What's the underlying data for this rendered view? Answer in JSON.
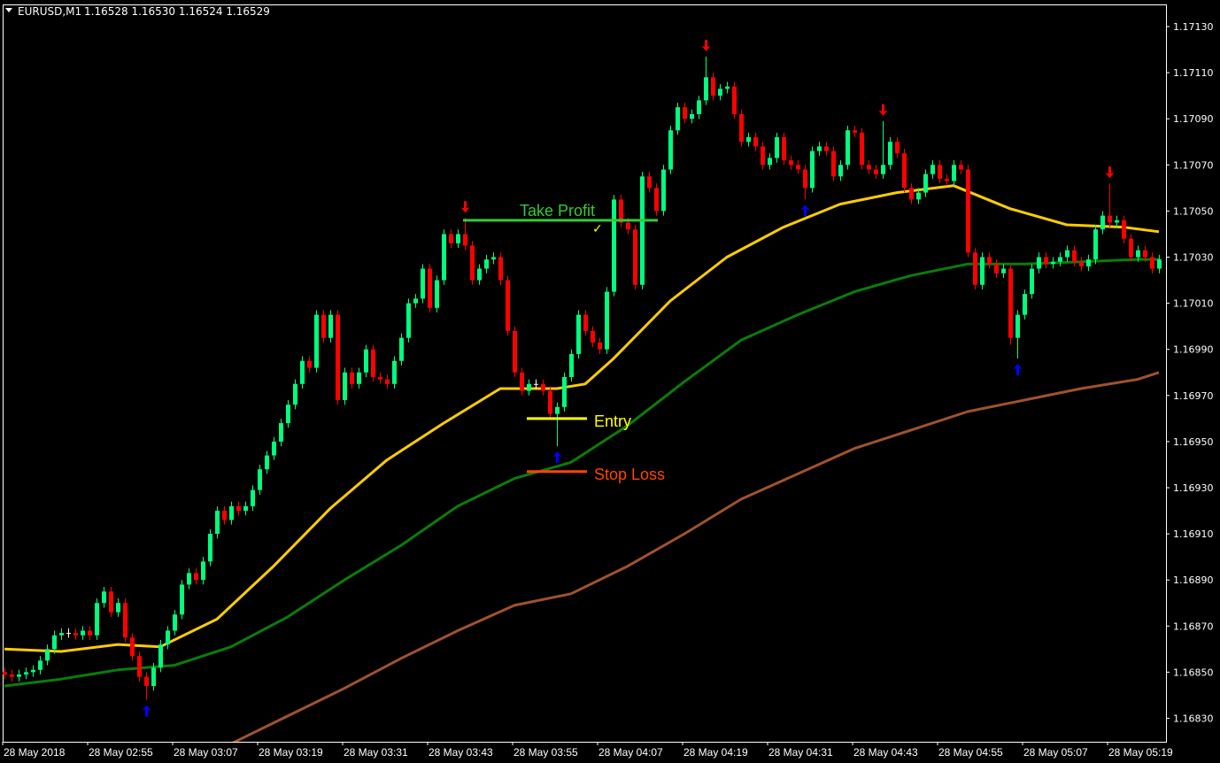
{
  "header": {
    "symbol": "EURUSD,M1",
    "quote": "1.16528 1.16530 1.16524 1.16529"
  },
  "colors": {
    "background": "#000000",
    "frame": "#ffffff",
    "bull": "#00ff7f",
    "bear": "#ff0000",
    "doji": "#ffffff",
    "ma_fast": "#ffcc00",
    "ma_mid": "#0a7d0a",
    "ma_slow": "#a0522d",
    "take_profit": "#33cc33",
    "entry": "#ffff00",
    "stop_loss": "#ff4500",
    "buy_arrow": "#0000ff",
    "sell_arrow": "#ff0000"
  },
  "chart_data": {
    "type": "candlestick",
    "timeframe": "M1",
    "ylim": [
      1.16815,
      1.17145
    ],
    "y_ticks": [
      "1.17130",
      "1.17110",
      "1.17090",
      "1.17070",
      "1.17050",
      "1.17030",
      "1.17010",
      "1.16990",
      "1.16970",
      "1.16950",
      "1.16930",
      "1.16910",
      "1.16890",
      "1.16870",
      "1.16850",
      "1.16830"
    ],
    "x_ticks": [
      "28 May 2018",
      "28 May 02:55",
      "28 May 03:07",
      "28 May 03:19",
      "28 May 03:31",
      "28 May 03:43",
      "28 May 03:55",
      "28 May 04:07",
      "28 May 04:19",
      "28 May 04:31",
      "28 May 04:43",
      "28 May 04:55",
      "28 May 05:07",
      "28 May 05:19"
    ],
    "first_open": 1.1685,
    "closes": [
      1.16849,
      1.16848,
      1.16849,
      1.1685,
      1.16851,
      1.16855,
      1.1686,
      1.16866,
      1.16867,
      1.16867,
      1.16866,
      1.16868,
      1.16866,
      1.1688,
      1.16885,
      1.16876,
      1.1688,
      1.16865,
      1.16857,
      1.16848,
      1.16844,
      1.16852,
      1.16862,
      1.16868,
      1.16875,
      1.16888,
      1.16893,
      1.1689,
      1.16898,
      1.1691,
      1.1692,
      1.16916,
      1.16922,
      1.1692,
      1.16922,
      1.16929,
      1.16938,
      1.16944,
      1.1695,
      1.16958,
      1.16966,
      1.16975,
      1.16985,
      1.16982,
      1.17005,
      1.16995,
      1.17005,
      1.16968,
      1.1698,
      1.16975,
      1.1698,
      1.1699,
      1.16978,
      1.16977,
      1.16975,
      1.16985,
      1.16995,
      1.1701,
      1.17012,
      1.17025,
      1.17008,
      1.1702,
      1.1704,
      1.17036,
      1.1704,
      1.17035,
      1.1702,
      1.17025,
      1.17029,
      1.1703,
      1.1702,
      1.16998,
      1.1698,
      1.16972,
      1.16975,
      1.16975,
      1.16972,
      1.16962,
      1.16965,
      1.16978,
      1.16988,
      1.17005,
      1.16998,
      1.16993,
      1.1699,
      1.17015,
      1.17055,
      1.17045,
      1.17042,
      1.17018,
      1.17065,
      1.1706,
      1.1705,
      1.17068,
      1.17085,
      1.17095,
      1.1709,
      1.17092,
      1.17098,
      1.17108,
      1.171,
      1.17103,
      1.17104,
      1.17092,
      1.1708,
      1.17082,
      1.17078,
      1.1707,
      1.17073,
      1.17082,
      1.17072,
      1.1707,
      1.17068,
      1.1706,
      1.17076,
      1.17078,
      1.17076,
      1.17065,
      1.1707,
      1.17085,
      1.17084,
      1.1707,
      1.17068,
      1.17066,
      1.1707,
      1.1708,
      1.17075,
      1.1706,
      1.17055,
      1.17058,
      1.17066,
      1.1707,
      1.17064,
      1.17063,
      1.1707,
      1.17068,
      1.17032,
      1.17018,
      1.1703,
      1.17027,
      1.17023,
      1.17025,
      1.16995,
      1.17005,
      1.17014,
      1.17025,
      1.1703,
      1.17027,
      1.17028,
      1.1703,
      1.17033,
      1.17028,
      1.17026,
      1.17029,
      1.17042,
      1.17048,
      1.17045,
      1.17046,
      1.17038,
      1.1703,
      1.17033,
      1.1703,
      1.17025,
      1.17029
    ],
    "wick_extremes": [
      {
        "i": 20,
        "low": 1.16838
      },
      {
        "i": 65,
        "high": 1.17047
      },
      {
        "i": 78,
        "low": 1.16948
      },
      {
        "i": 99,
        "high": 1.17117
      },
      {
        "i": 113,
        "low": 1.17055
      },
      {
        "i": 124,
        "high": 1.17089
      },
      {
        "i": 142,
        "low": 1.16992
      },
      {
        "i": 143,
        "low": 1.16986
      },
      {
        "i": 156,
        "high": 1.17062
      }
    ],
    "moving_averages": [
      {
        "color_key": "ma_fast",
        "points": [
          [
            0,
            1.1686
          ],
          [
            8,
            1.16859
          ],
          [
            16,
            1.16862
          ],
          [
            22,
            1.16861
          ],
          [
            30,
            1.16873
          ],
          [
            38,
            1.16896
          ],
          [
            46,
            1.16921
          ],
          [
            54,
            1.16942
          ],
          [
            62,
            1.16958
          ],
          [
            70,
            1.16973
          ],
          [
            78,
            1.16973
          ],
          [
            82,
            1.16975
          ],
          [
            86,
            1.16986
          ],
          [
            94,
            1.17011
          ],
          [
            102,
            1.1703
          ],
          [
            110,
            1.17043
          ],
          [
            118,
            1.17053
          ],
          [
            126,
            1.17058
          ],
          [
            134,
            1.17061
          ],
          [
            142,
            1.17051
          ],
          [
            150,
            1.17044
          ],
          [
            158,
            1.17043
          ],
          [
            163,
            1.17041
          ]
        ]
      },
      {
        "color_key": "ma_mid",
        "points": [
          [
            0,
            1.16844
          ],
          [
            8,
            1.16847
          ],
          [
            16,
            1.16851
          ],
          [
            24,
            1.16853
          ],
          [
            32,
            1.16861
          ],
          [
            40,
            1.16874
          ],
          [
            48,
            1.1689
          ],
          [
            56,
            1.16905
          ],
          [
            64,
            1.16922
          ],
          [
            72,
            1.16934
          ],
          [
            80,
            1.16941
          ],
          [
            88,
            1.16957
          ],
          [
            96,
            1.16976
          ],
          [
            104,
            1.16994
          ],
          [
            112,
            1.17005
          ],
          [
            120,
            1.17015
          ],
          [
            128,
            1.17022
          ],
          [
            136,
            1.17027
          ],
          [
            144,
            1.17027
          ],
          [
            152,
            1.17028
          ],
          [
            160,
            1.17029
          ],
          [
            163,
            1.17029
          ]
        ]
      },
      {
        "color_key": "ma_slow",
        "points": [
          [
            24,
            1.16805
          ],
          [
            32,
            1.16819
          ],
          [
            40,
            1.16831
          ],
          [
            48,
            1.16843
          ],
          [
            56,
            1.16856
          ],
          [
            64,
            1.16868
          ],
          [
            72,
            1.16879
          ],
          [
            80,
            1.16884
          ],
          [
            88,
            1.16896
          ],
          [
            96,
            1.1691
          ],
          [
            104,
            1.16925
          ],
          [
            112,
            1.16936
          ],
          [
            120,
            1.16947
          ],
          [
            128,
            1.16955
          ],
          [
            136,
            1.16963
          ],
          [
            144,
            1.16968
          ],
          [
            152,
            1.16973
          ],
          [
            160,
            1.16977
          ],
          [
            163,
            1.1698
          ]
        ]
      }
    ],
    "signals": [
      {
        "i": 20,
        "type": "buy"
      },
      {
        "i": 78,
        "type": "buy"
      },
      {
        "i": 113,
        "type": "buy"
      },
      {
        "i": 143,
        "type": "buy"
      },
      {
        "i": 65,
        "type": "sell"
      },
      {
        "i": 99,
        "type": "sell"
      },
      {
        "i": 124,
        "type": "sell"
      },
      {
        "i": 156,
        "type": "sell"
      }
    ],
    "levels": [
      {
        "key": "take_profit",
        "label": "Take Profit",
        "price": 1.17046,
        "from": 65,
        "to": 92
      },
      {
        "key": "entry",
        "label": "Entry",
        "price": 1.1696,
        "from": 74,
        "to": 82
      },
      {
        "key": "stop_loss",
        "label": "Stop Loss",
        "price": 1.16937,
        "from": 74,
        "to": 82
      }
    ],
    "checkmark": "✓"
  }
}
